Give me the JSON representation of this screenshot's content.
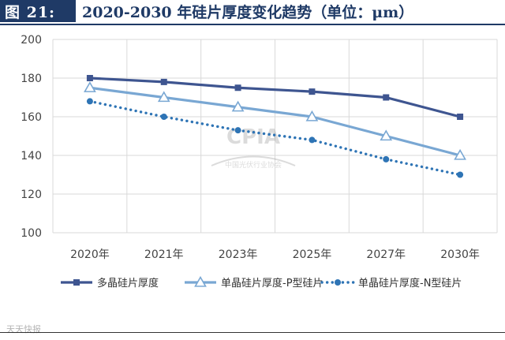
{
  "header": {
    "figure_label": "图 21:",
    "title": "2020-2030 年硅片厚度变化趋势（单位：μm）"
  },
  "watermark": {
    "logo": "CPIA",
    "org": "中国光伏行业协会"
  },
  "footer": {
    "source": "天天快报"
  },
  "chart_data": {
    "type": "line",
    "categories": [
      "2020年",
      "2021年",
      "2023年",
      "2025年",
      "2027年",
      "2030年"
    ],
    "ylim": [
      100,
      200
    ],
    "yticks": [
      100,
      120,
      140,
      160,
      180,
      200
    ],
    "grid": true,
    "legend_position": "bottom",
    "series": [
      {
        "name": "多晶硅片厚度",
        "values": [
          180,
          178,
          175,
          173,
          170,
          160
        ],
        "color": "#3e5590",
        "marker": "square",
        "dash": "solid"
      },
      {
        "name": "单晶硅片厚度-P型硅片",
        "values": [
          175,
          170,
          165,
          160,
          150,
          140
        ],
        "color": "#79a7d3",
        "marker": "triangle",
        "dash": "solid"
      },
      {
        "name": "单晶硅片厚度-N型硅片",
        "values": [
          168,
          160,
          153,
          148,
          138,
          130
        ],
        "color": "#2e74b5",
        "marker": "circle",
        "dash": "dotted"
      }
    ]
  }
}
